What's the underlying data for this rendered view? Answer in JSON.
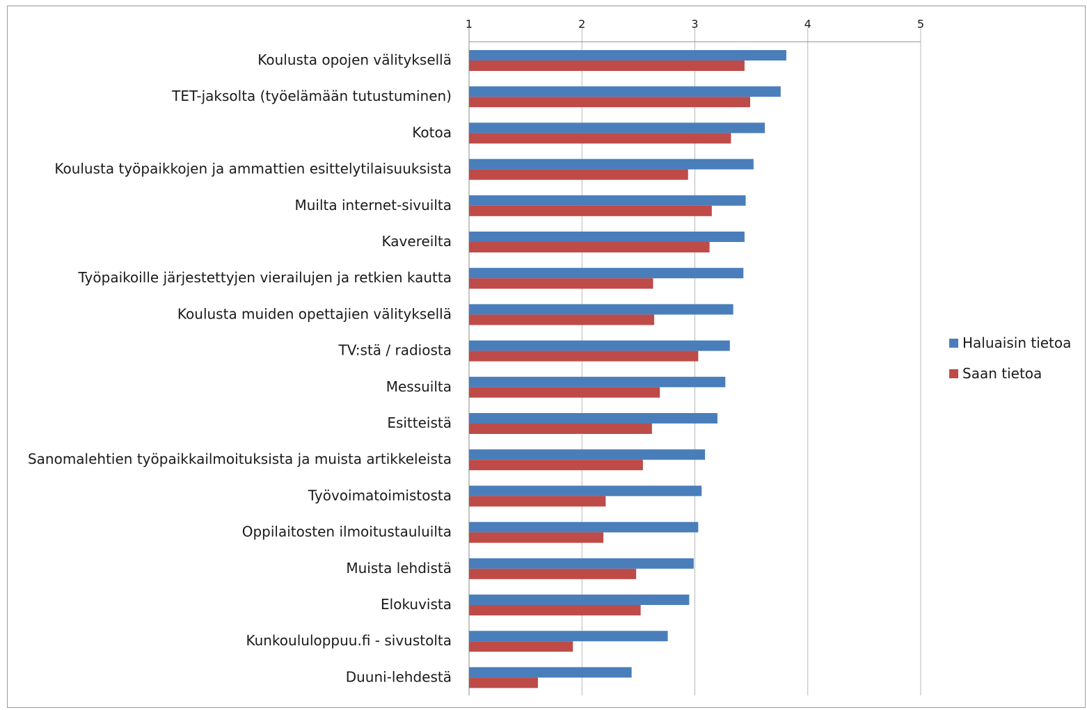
{
  "chart_data": {
    "type": "bar",
    "orientation": "horizontal",
    "title": "",
    "xlabel": "",
    "ylabel": "",
    "xlim": [
      1,
      5
    ],
    "x_ticks": [
      "1",
      "2",
      "3",
      "4",
      "5"
    ],
    "x_axis_position": "top",
    "grid": true,
    "legend_position": "right",
    "categories": [
      "Koulusta opojen välityksellä",
      "TET-jaksolta (työelämään tutustuminen)",
      "Kotoa",
      "Koulusta työpaikkojen ja ammattien esittelytilaisuuksista",
      "Muilta internet-sivuilta",
      "Kavereilta",
      "Työpaikoille järjestettyjen vierailujen ja retkien kautta",
      "Koulusta muiden opettajien välityksellä",
      "TV:stä / radiosta",
      "Messuilta",
      "Esitteistä",
      "Sanomalehtien työpaikkailmoituksista ja muista artikkeleista",
      "Työvoimatoimistosta",
      "Oppilaitosten ilmoitustauluilta",
      "Muista lehdistä",
      "Elokuvista",
      "Kunkoululoppuu.fi - sivustolta",
      "Duuni-lehdestä"
    ],
    "series": [
      {
        "name": "Haluaisin tietoa",
        "color": "#4a7ebb",
        "values": [
          3.81,
          3.76,
          3.62,
          3.52,
          3.45,
          3.44,
          3.43,
          3.34,
          3.31,
          3.27,
          3.2,
          3.09,
          3.06,
          3.03,
          2.99,
          2.95,
          2.76,
          2.44
        ]
      },
      {
        "name": "Saan tietoa",
        "color": "#be4b48",
        "values": [
          3.44,
          3.49,
          3.32,
          2.94,
          3.15,
          3.13,
          2.63,
          2.64,
          3.03,
          2.69,
          2.62,
          2.54,
          2.21,
          2.19,
          2.48,
          2.52,
          1.92,
          1.61
        ]
      }
    ]
  }
}
